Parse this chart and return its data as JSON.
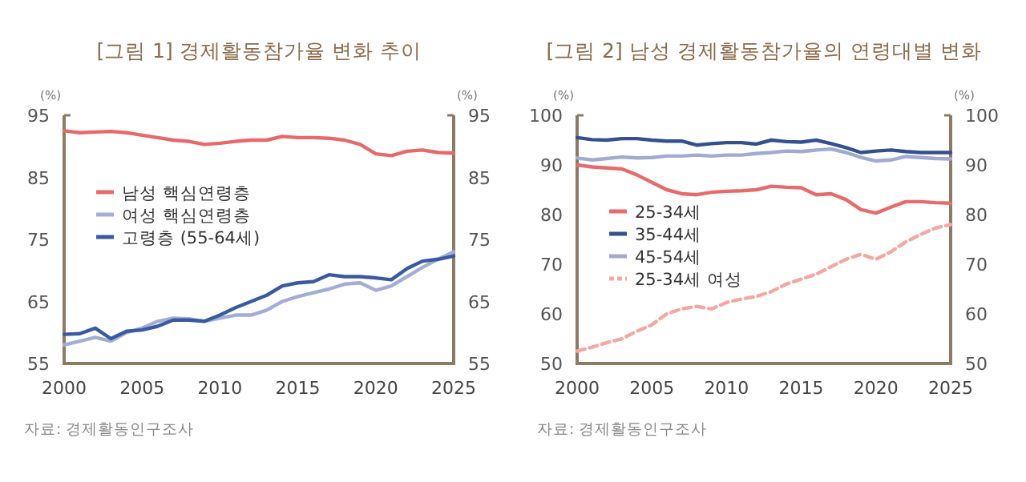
{
  "chart_data": [
    {
      "type": "line",
      "title": "[그림 1] 경제활동참가율 변화 추이",
      "ylabel": "(%)",
      "y2label": "(%)",
      "x": [
        2000,
        2001,
        2002,
        2003,
        2004,
        2005,
        2006,
        2007,
        2008,
        2009,
        2010,
        2011,
        2012,
        2013,
        2014,
        2015,
        2016,
        2017,
        2018,
        2019,
        2020,
        2021,
        2022,
        2023,
        2024,
        2025
      ],
      "series": [
        {
          "name": "남성 핵심연령층",
          "color": "#e8696b",
          "values": [
            92.5,
            92.2,
            92.3,
            92.4,
            92.2,
            91.8,
            91.4,
            91.0,
            90.8,
            90.3,
            90.5,
            90.8,
            91.0,
            91.0,
            91.6,
            91.4,
            91.4,
            91.3,
            91.0,
            90.3,
            88.8,
            88.5,
            89.2,
            89.4,
            89.0,
            88.9
          ]
        },
        {
          "name": "여성 핵심연령층",
          "color": "#a3aed6",
          "values": [
            58.0,
            58.6,
            59.2,
            58.6,
            60.0,
            60.7,
            61.8,
            62.3,
            62.2,
            61.8,
            62.3,
            62.8,
            62.8,
            63.6,
            65.0,
            65.8,
            66.4,
            67.0,
            67.8,
            68.0,
            66.8,
            67.5,
            69.0,
            70.5,
            71.8,
            73.0
          ]
        },
        {
          "name": "고령층 (55-64세)",
          "color": "#3a5aa0",
          "values": [
            59.7,
            59.8,
            60.7,
            59.0,
            60.2,
            60.4,
            61.0,
            62.0,
            62.0,
            61.8,
            62.8,
            64.0,
            65.0,
            66.0,
            67.5,
            68.0,
            68.2,
            69.3,
            69.0,
            69.0,
            68.8,
            68.5,
            70.3,
            71.5,
            71.8,
            72.3
          ]
        }
      ],
      "xlim": [
        2000,
        2025
      ],
      "xticks": [
        2000,
        2005,
        2010,
        2015,
        2020,
        2025
      ],
      "ylim": [
        55,
        95
      ],
      "yticks": [
        55,
        65,
        75,
        85,
        95
      ],
      "y2lim": [
        55,
        95
      ],
      "y2ticks": [
        55,
        65,
        75,
        85,
        95
      ],
      "legend": "left",
      "line_style": "solid",
      "marker": "none",
      "grid": false,
      "annotations": [
        "자료: 경제활동인구조사"
      ]
    },
    {
      "type": "line",
      "title": "[그림 2] 남성 경제활동참가율의 연령대별 변화",
      "ylabel": "(%)",
      "y2label": "(%)",
      "x": [
        2000,
        2001,
        2002,
        2003,
        2004,
        2005,
        2006,
        2007,
        2008,
        2009,
        2010,
        2011,
        2012,
        2013,
        2014,
        2015,
        2016,
        2017,
        2018,
        2019,
        2020,
        2021,
        2022,
        2023,
        2024,
        2025
      ],
      "series": [
        {
          "name": "25-34세",
          "color": "#e96a6c",
          "values": [
            90.0,
            89.6,
            89.4,
            89.2,
            88.0,
            86.5,
            85.0,
            84.2,
            84.0,
            84.5,
            84.7,
            84.8,
            85.0,
            85.7,
            85.5,
            85.4,
            84.0,
            84.2,
            83.0,
            81.0,
            80.3,
            81.5,
            82.6,
            82.6,
            82.4,
            82.3
          ]
        },
        {
          "name": "35-44세",
          "color": "#34508f",
          "values": [
            95.5,
            95.1,
            95.0,
            95.3,
            95.3,
            95.0,
            94.8,
            94.8,
            94.0,
            94.3,
            94.5,
            94.5,
            94.2,
            95.0,
            94.7,
            94.6,
            95.0,
            94.3,
            93.5,
            92.5,
            92.8,
            93.0,
            92.7,
            92.5,
            92.5,
            92.5
          ]
        },
        {
          "name": "45-54세",
          "color": "#a1abd2",
          "values": [
            91.4,
            91.0,
            91.3,
            91.6,
            91.4,
            91.5,
            91.8,
            91.8,
            92.0,
            91.8,
            92.0,
            92.0,
            92.3,
            92.5,
            92.8,
            92.7,
            93.0,
            93.2,
            92.5,
            91.5,
            90.8,
            91.0,
            91.7,
            91.5,
            91.3,
            91.2
          ]
        },
        {
          "name": "25-34세 여성",
          "color": "#f2a9a3",
          "line_style": "dashed",
          "values": [
            52.5,
            53.3,
            54.2,
            55.0,
            56.5,
            57.8,
            60.0,
            61.0,
            61.5,
            61.0,
            62.3,
            63.0,
            63.5,
            64.5,
            66.0,
            67.0,
            68.0,
            69.5,
            71.0,
            72.0,
            71.0,
            72.5,
            74.5,
            76.0,
            77.3,
            78.0
          ]
        }
      ],
      "xlim": [
        2000,
        2025
      ],
      "xticks": [
        2000,
        2005,
        2010,
        2015,
        2020,
        2025
      ],
      "ylim": [
        50,
        100
      ],
      "yticks": [
        50,
        60,
        70,
        80,
        90,
        100
      ],
      "y2lim": [
        50,
        100
      ],
      "y2ticks": [
        50,
        60,
        70,
        80,
        90,
        100
      ],
      "legend": "left",
      "line_style": "solid",
      "marker": "none",
      "grid": false,
      "annotations": [
        "자료: 경제활동인구조사"
      ]
    }
  ]
}
